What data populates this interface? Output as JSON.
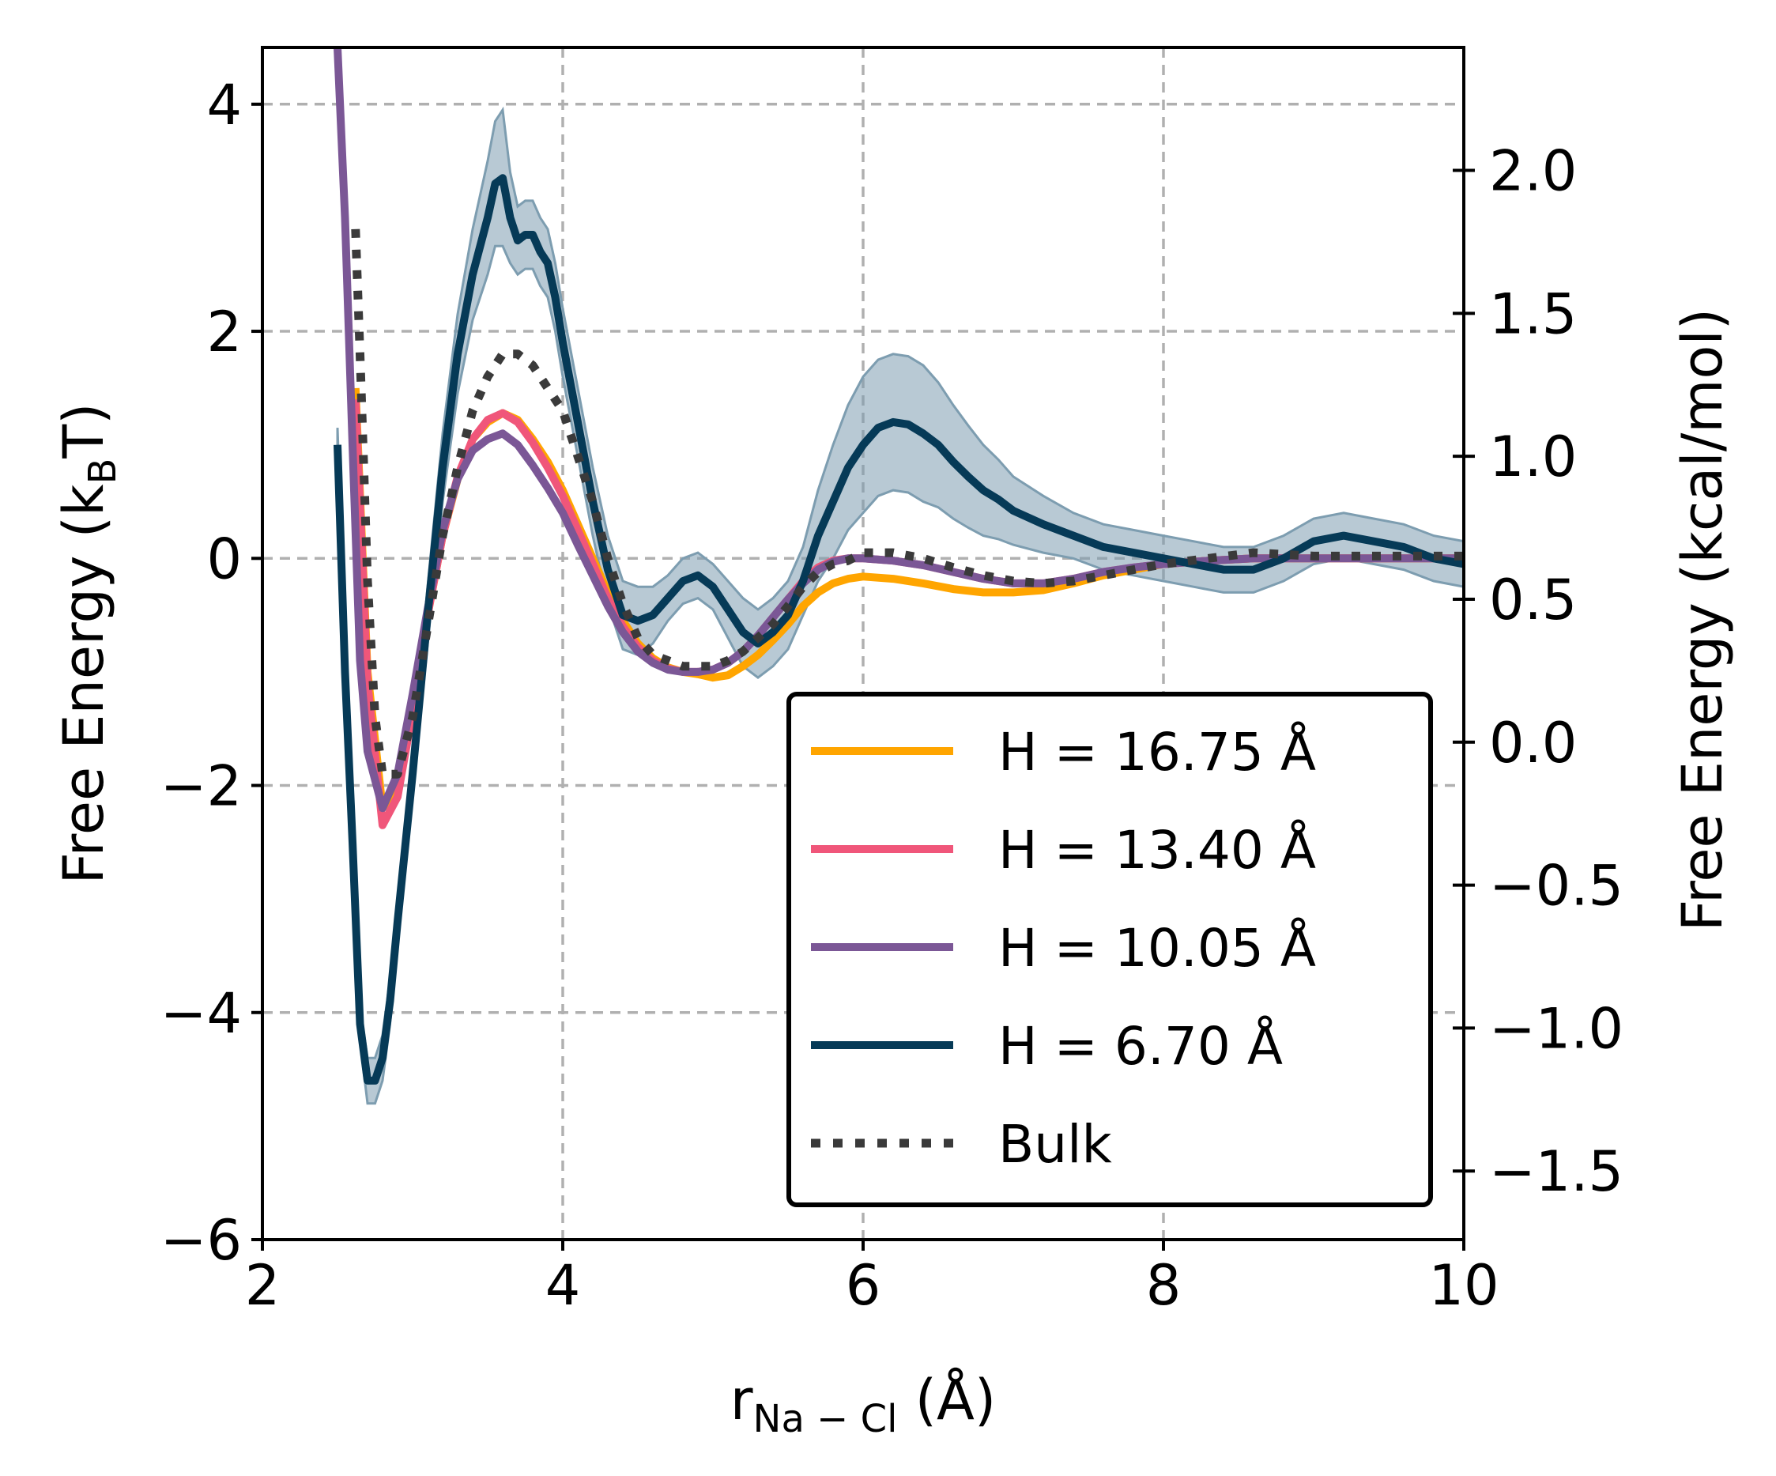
{
  "chart_data": {
    "type": "line",
    "xlabel": {
      "main": "r",
      "sub": "Na − Cl",
      "unit": " (Å)"
    },
    "ylabel_left": {
      "main": "Free Energy (k",
      "sub": "B",
      "unit": "T)"
    },
    "ylabel_right": "Free Energy (kcal/mol)",
    "xlim": [
      2,
      10
    ],
    "ylim": [
      -6,
      4.5
    ],
    "ylim_right": [
      -1.74,
      2.43
    ],
    "x_ticks": [
      2,
      4,
      6,
      8,
      10
    ],
    "x_tick_labels": [
      "2",
      "4",
      "6",
      "8",
      "10"
    ],
    "y_ticks": [
      -6,
      -4,
      -2,
      0,
      2,
      4
    ],
    "y_tick_labels": [
      "−6",
      "−4",
      "−2",
      "0",
      "2",
      "4"
    ],
    "y_right_ticks": [
      -1.5,
      -1.0,
      -0.5,
      0.0,
      0.5,
      1.0,
      1.5,
      2.0
    ],
    "y_right_tick_labels": [
      "−1.5",
      "−1.0",
      "−0.5",
      "0.0",
      "0.5",
      "1.0",
      "1.5",
      "2.0"
    ],
    "grid": true,
    "legend_position": "lower-right",
    "series": [
      {
        "name": "H = 16.75 Å",
        "color": "#ffa500",
        "style": "solid",
        "x": [
          2.62,
          2.7,
          2.8,
          2.9,
          3.0,
          3.1,
          3.2,
          3.3,
          3.4,
          3.5,
          3.6,
          3.7,
          3.8,
          3.9,
          4.0,
          4.1,
          4.2,
          4.3,
          4.4,
          4.5,
          4.6,
          4.7,
          4.8,
          4.9,
          5.0,
          5.1,
          5.2,
          5.3,
          5.4,
          5.5,
          5.6,
          5.7,
          5.8,
          5.9,
          6.0,
          6.2,
          6.4,
          6.6,
          6.8,
          7.0,
          7.2,
          7.4,
          7.6,
          7.8,
          8.0,
          8.3,
          8.6,
          9.0,
          9.5,
          10.0
        ],
        "y": [
          1.5,
          -1.0,
          -2.2,
          -2.0,
          -1.3,
          -0.5,
          0.2,
          0.7,
          1.05,
          1.2,
          1.28,
          1.22,
          1.05,
          0.85,
          0.6,
          0.3,
          0.0,
          -0.3,
          -0.55,
          -0.75,
          -0.88,
          -0.96,
          -1.0,
          -1.02,
          -1.05,
          -1.03,
          -0.95,
          -0.85,
          -0.72,
          -0.58,
          -0.42,
          -0.3,
          -0.22,
          -0.18,
          -0.16,
          -0.18,
          -0.22,
          -0.27,
          -0.3,
          -0.3,
          -0.28,
          -0.22,
          -0.15,
          -0.1,
          -0.05,
          -0.02,
          0.0,
          0.0,
          0.0,
          0.0
        ]
      },
      {
        "name": "H = 13.40 Å",
        "color": "#f0567a",
        "style": "solid",
        "x": [
          2.62,
          2.7,
          2.8,
          2.9,
          3.0,
          3.1,
          3.2,
          3.3,
          3.4,
          3.5,
          3.6,
          3.7,
          3.8,
          3.9,
          4.0,
          4.1,
          4.2,
          4.3,
          4.4,
          4.5,
          4.6,
          4.7,
          4.8,
          4.9,
          5.0,
          5.1,
          5.2,
          5.3,
          5.4,
          5.5,
          5.6,
          5.7,
          5.8,
          5.9,
          6.0,
          6.2,
          6.4,
          6.6,
          6.8,
          7.0,
          7.2,
          7.4,
          7.6,
          7.8,
          8.0,
          8.3,
          8.6,
          9.0,
          9.5,
          10.0
        ],
        "y": [
          1.4,
          -1.1,
          -2.35,
          -2.1,
          -1.35,
          -0.5,
          0.2,
          0.72,
          1.05,
          1.22,
          1.28,
          1.2,
          1.02,
          0.8,
          0.55,
          0.25,
          -0.05,
          -0.35,
          -0.6,
          -0.78,
          -0.9,
          -0.97,
          -1.0,
          -1.0,
          -0.98,
          -0.92,
          -0.82,
          -0.68,
          -0.52,
          -0.36,
          -0.2,
          -0.08,
          -0.02,
          0.0,
          0.0,
          -0.02,
          -0.06,
          -0.12,
          -0.18,
          -0.22,
          -0.22,
          -0.18,
          -0.12,
          -0.08,
          -0.05,
          -0.02,
          0.0,
          0.0,
          0.0,
          0.0
        ]
      },
      {
        "name": "H = 10.05 Å",
        "color": "#7b5796",
        "style": "solid",
        "x": [
          2.5,
          2.55,
          2.6,
          2.65,
          2.7,
          2.8,
          2.9,
          3.0,
          3.1,
          3.2,
          3.3,
          3.4,
          3.5,
          3.6,
          3.7,
          3.8,
          3.9,
          4.0,
          4.1,
          4.2,
          4.3,
          4.4,
          4.5,
          4.6,
          4.7,
          4.8,
          4.9,
          5.0,
          5.1,
          5.2,
          5.3,
          5.4,
          5.5,
          5.6,
          5.7,
          5.8,
          5.9,
          6.0,
          6.2,
          6.4,
          6.6,
          6.8,
          7.0,
          7.2,
          7.4,
          7.6,
          7.8,
          8.0,
          8.3,
          8.6,
          9.0,
          9.5,
          10.0
        ],
        "y": [
          4.5,
          3.0,
          1.0,
          -0.9,
          -1.7,
          -2.2,
          -1.9,
          -1.2,
          -0.45,
          0.25,
          0.7,
          0.95,
          1.05,
          1.1,
          1.0,
          0.82,
          0.62,
          0.4,
          0.12,
          -0.15,
          -0.42,
          -0.65,
          -0.82,
          -0.92,
          -0.98,
          -1.0,
          -1.0,
          -0.98,
          -0.92,
          -0.82,
          -0.68,
          -0.52,
          -0.36,
          -0.22,
          -0.1,
          -0.03,
          0.0,
          0.0,
          -0.02,
          -0.06,
          -0.12,
          -0.18,
          -0.22,
          -0.22,
          -0.18,
          -0.12,
          -0.08,
          -0.05,
          -0.02,
          0.0,
          0.0,
          0.0,
          0.0
        ]
      },
      {
        "name": "H = 6.70 Å",
        "color": "#063a57",
        "style": "solid",
        "band": true,
        "x": [
          2.5,
          2.55,
          2.6,
          2.65,
          2.7,
          2.75,
          2.8,
          2.85,
          2.9,
          3.0,
          3.1,
          3.2,
          3.3,
          3.4,
          3.5,
          3.55,
          3.6,
          3.65,
          3.7,
          3.75,
          3.8,
          3.85,
          3.9,
          3.95,
          4.0,
          4.1,
          4.2,
          4.3,
          4.4,
          4.5,
          4.6,
          4.7,
          4.8,
          4.9,
          5.0,
          5.1,
          5.2,
          5.3,
          5.4,
          5.5,
          5.6,
          5.7,
          5.8,
          5.9,
          6.0,
          6.1,
          6.2,
          6.3,
          6.4,
          6.5,
          6.6,
          6.7,
          6.8,
          6.9,
          7.0,
          7.2,
          7.4,
          7.6,
          7.8,
          8.0,
          8.2,
          8.4,
          8.6,
          8.8,
          9.0,
          9.2,
          9.4,
          9.6,
          9.8,
          10.0
        ],
        "y": [
          1.0,
          -1.0,
          -2.5,
          -4.1,
          -4.6,
          -4.6,
          -4.4,
          -3.9,
          -3.2,
          -1.9,
          -0.5,
          0.8,
          1.8,
          2.5,
          3.0,
          3.3,
          3.35,
          3.0,
          2.8,
          2.85,
          2.85,
          2.7,
          2.6,
          2.3,
          1.9,
          1.2,
          0.5,
          -0.1,
          -0.5,
          -0.55,
          -0.5,
          -0.35,
          -0.2,
          -0.15,
          -0.25,
          -0.45,
          -0.65,
          -0.75,
          -0.65,
          -0.5,
          -0.2,
          0.2,
          0.5,
          0.8,
          1.0,
          1.15,
          1.2,
          1.18,
          1.1,
          1.0,
          0.85,
          0.72,
          0.6,
          0.52,
          0.42,
          0.3,
          0.2,
          0.1,
          0.05,
          0.0,
          -0.05,
          -0.1,
          -0.1,
          0.0,
          0.15,
          0.2,
          0.15,
          0.1,
          0.0,
          -0.05
        ],
        "band_half_width": [
          0.15,
          0.15,
          0.15,
          0.15,
          0.2,
          0.2,
          0.2,
          0.2,
          0.2,
          0.2,
          0.25,
          0.3,
          0.35,
          0.4,
          0.5,
          0.55,
          0.6,
          0.4,
          0.3,
          0.3,
          0.3,
          0.3,
          0.3,
          0.3,
          0.3,
          0.3,
          0.3,
          0.3,
          0.3,
          0.3,
          0.25,
          0.2,
          0.2,
          0.2,
          0.2,
          0.25,
          0.3,
          0.3,
          0.3,
          0.3,
          0.3,
          0.4,
          0.5,
          0.55,
          0.6,
          0.6,
          0.6,
          0.6,
          0.6,
          0.55,
          0.5,
          0.45,
          0.4,
          0.35,
          0.3,
          0.25,
          0.2,
          0.2,
          0.2,
          0.2,
          0.2,
          0.2,
          0.2,
          0.2,
          0.2,
          0.2,
          0.2,
          0.2,
          0.2,
          0.2
        ],
        "band_color": "#7d9db0"
      },
      {
        "name": "Bulk",
        "color": "#3a3a3a",
        "style": "dotted",
        "x": [
          2.62,
          2.65,
          2.7,
          2.75,
          2.8,
          2.9,
          3.0,
          3.1,
          3.2,
          3.3,
          3.4,
          3.5,
          3.6,
          3.7,
          3.8,
          3.9,
          4.0,
          4.1,
          4.2,
          4.3,
          4.4,
          4.5,
          4.6,
          4.7,
          4.8,
          4.9,
          5.0,
          5.1,
          5.2,
          5.3,
          5.4,
          5.5,
          5.6,
          5.7,
          5.8,
          5.9,
          6.0,
          6.2,
          6.4,
          6.6,
          6.8,
          7.0,
          7.2,
          7.4,
          7.6,
          7.8,
          8.0,
          8.3,
          8.6,
          9.0,
          9.5,
          10.0
        ],
        "y": [
          2.9,
          1.8,
          -0.2,
          -1.4,
          -1.9,
          -1.9,
          -1.4,
          -0.6,
          0.2,
          0.8,
          1.3,
          1.6,
          1.8,
          1.8,
          1.7,
          1.5,
          1.3,
          0.9,
          0.5,
          0.0,
          -0.4,
          -0.7,
          -0.85,
          -0.9,
          -0.95,
          -0.95,
          -0.95,
          -0.9,
          -0.82,
          -0.7,
          -0.58,
          -0.42,
          -0.25,
          -0.12,
          -0.05,
          -0.02,
          0.05,
          0.05,
          0.0,
          -0.08,
          -0.15,
          -0.2,
          -0.22,
          -0.2,
          -0.15,
          -0.1,
          -0.05,
          0.0,
          0.05,
          0.02,
          0.02,
          0.02
        ]
      }
    ]
  }
}
